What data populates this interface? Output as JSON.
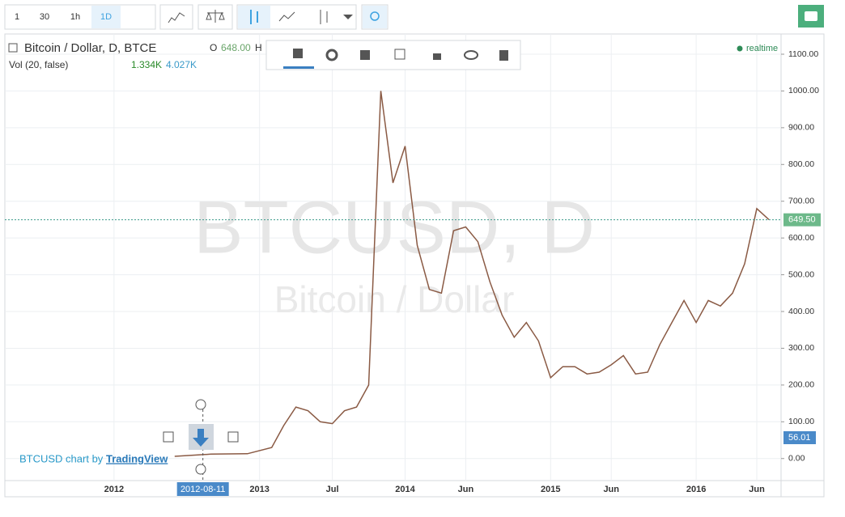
{
  "toolbar": {
    "intervals": [
      "1",
      "30",
      "1h",
      "1D"
    ]
  },
  "legend": {
    "open_label": "O",
    "open_value": "648.00",
    "high_label": "H",
    "volume_title": "Vol (20, false)",
    "volume_values": [
      "1.334K",
      "4.027K"
    ],
    "realtime": "realtime"
  },
  "watermark": {
    "symbol": "BTCUSD, D",
    "name": "Bitcoin / Dollar"
  },
  "footer": {
    "text": "BTCUSD chart by",
    "link": "TradingView"
  },
  "chart_data": {
    "type": "line",
    "x": [
      "2012-06",
      "2012-09",
      "2012-12",
      "2013-02",
      "2013-03",
      "2013-04",
      "2013-05",
      "2013-06",
      "2013-07",
      "2013-08",
      "2013-09",
      "2013-10",
      "2013-11",
      "2013-12",
      "2014-01",
      "2014-02",
      "2014-03",
      "2014-04",
      "2014-05",
      "2014-06",
      "2014-07",
      "2014-08",
      "2014-09",
      "2014-10",
      "2014-11",
      "2014-12",
      "2015-01",
      "2015-02",
      "2015-03",
      "2015-04",
      "2015-05",
      "2015-06",
      "2015-07",
      "2015-08",
      "2015-09",
      "2015-10",
      "2015-11",
      "2015-12",
      "2016-01",
      "2016-02",
      "2016-03",
      "2016-04",
      "2016-05",
      "2016-06",
      "2016-07"
    ],
    "series": [
      {
        "name": "Bitcoin / Dollar, D, BTCE",
        "color": "#8a5a44",
        "values": [
          6,
          12,
          13,
          30,
          90,
          140,
          130,
          100,
          95,
          130,
          140,
          200,
          1000,
          750,
          850,
          580,
          460,
          450,
          620,
          630,
          590,
          480,
          390,
          330,
          370,
          320,
          220,
          250,
          250,
          230,
          235,
          255,
          280,
          230,
          235,
          310,
          370,
          430,
          370,
          430,
          415,
          450,
          530,
          680,
          650
        ]
      }
    ],
    "xlim": [
      "2011-04",
      "2016-08"
    ],
    "xticks": [
      {
        "value": "2012-01",
        "label": "2012"
      },
      {
        "value": "2013-01",
        "label": "2013"
      },
      {
        "value": "2013-07",
        "label": "Jul"
      },
      {
        "value": "2014-01",
        "label": "2014"
      },
      {
        "value": "2014-06",
        "label": "Jun"
      },
      {
        "value": "2015-01",
        "label": "2015"
      },
      {
        "value": "2015-06",
        "label": "Jun"
      },
      {
        "value": "2016-01",
        "label": "2016"
      },
      {
        "value": "2016-06",
        "label": "Jun"
      }
    ],
    "ylim": [
      -60,
      1155
    ],
    "yticks": [
      {
        "value": 0,
        "label": "0.00"
      },
      {
        "value": 100,
        "label": "100.00"
      },
      {
        "value": 200,
        "label": "200.00"
      },
      {
        "value": 300,
        "label": "300.00"
      },
      {
        "value": 400,
        "label": "400.00"
      },
      {
        "value": 500,
        "label": "500.00"
      },
      {
        "value": 600,
        "label": "600.00"
      },
      {
        "value": 700,
        "label": "700.00"
      },
      {
        "value": 800,
        "label": "800.00"
      },
      {
        "value": 900,
        "label": "900.00"
      },
      {
        "value": 1000,
        "label": "1000.00"
      },
      {
        "value": 1100,
        "label": "1100.00"
      }
    ],
    "grid": true,
    "last_price": {
      "value": 649.5,
      "label": "649.50"
    },
    "volume_last": 56.01,
    "crosshair_x": "2012-08-11"
  }
}
